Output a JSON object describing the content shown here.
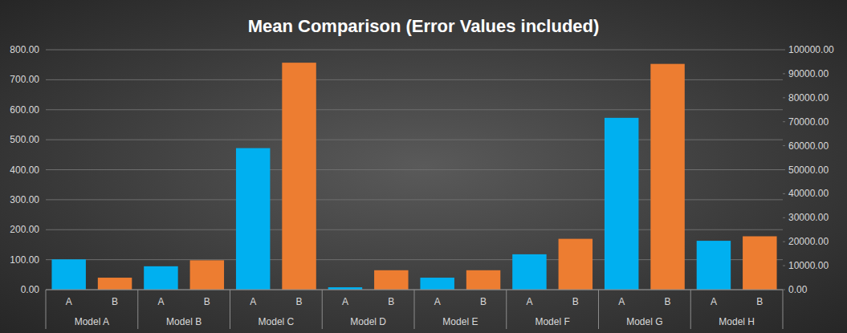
{
  "chart_data": {
    "type": "bar",
    "title": "Mean Comparison (Error Values included)",
    "categories": [
      "A",
      "B",
      "A",
      "B",
      "A",
      "B",
      "A",
      "B",
      "A",
      "B",
      "A",
      "B",
      "A",
      "B",
      "A",
      "B"
    ],
    "groups": [
      "Model A",
      "Model B",
      "Model C",
      "Model D",
      "Model E",
      "Model F",
      "Model G",
      "Model H"
    ],
    "series": [
      {
        "name": "A",
        "color": "#00b0f0",
        "values": [
          101,
          null,
          78,
          null,
          472,
          null,
          8,
          null,
          40,
          null,
          118,
          null,
          573,
          null,
          163,
          null
        ]
      },
      {
        "name": "B",
        "color": "#ed7d31",
        "axis": "y2",
        "values": [
          null,
          5000,
          null,
          12250,
          null,
          94600,
          null,
          8100,
          null,
          8100,
          null,
          21200,
          null,
          94100,
          null,
          22250
        ]
      }
    ],
    "ylim": [
      0,
      800
    ],
    "yticks": [
      {
        "value": 0,
        "label": "0.00"
      },
      {
        "value": 100,
        "label": "100.00"
      },
      {
        "value": 200,
        "label": "200.00"
      },
      {
        "value": 300,
        "label": "300.00"
      },
      {
        "value": 400,
        "label": "400.00"
      },
      {
        "value": 500,
        "label": "500.00"
      },
      {
        "value": 600,
        "label": "600.00"
      },
      {
        "value": 700,
        "label": "700.00"
      },
      {
        "value": 800,
        "label": "800.00"
      }
    ],
    "y2lim": [
      0,
      100000
    ],
    "y2ticks": [
      {
        "value": 0,
        "label": "0.00"
      },
      {
        "value": 10000,
        "label": "10000.00"
      },
      {
        "value": 20000,
        "label": "20000.00"
      },
      {
        "value": 30000,
        "label": "30000.00"
      },
      {
        "value": 40000,
        "label": "40000.00"
      },
      {
        "value": 50000,
        "label": "50000.00"
      },
      {
        "value": 60000,
        "label": "60000.00"
      },
      {
        "value": 70000,
        "label": "70000.00"
      },
      {
        "value": 80000,
        "label": "80000.00"
      },
      {
        "value": 90000,
        "label": "90000.00"
      },
      {
        "value": 100000,
        "label": "100000.00"
      }
    ],
    "grid": true
  }
}
